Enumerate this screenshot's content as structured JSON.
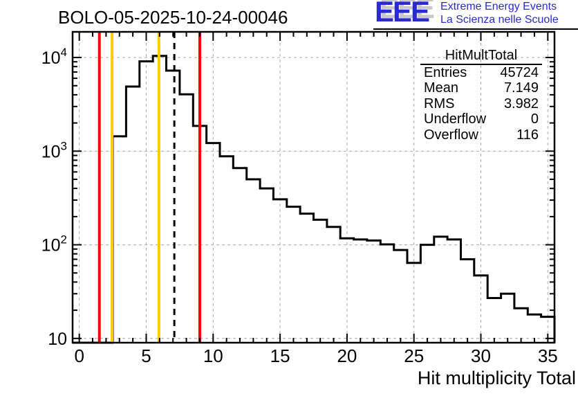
{
  "header": {
    "title": "BOLO-05-2025-10-24-00046"
  },
  "logo": {
    "acronym": "EEE",
    "line1": "Extreme Energy Events",
    "line2": "La Scienza nelle Scuole",
    "text_color": "#2a2ad2",
    "shadow_color": "#c8c8c8"
  },
  "stats": {
    "title": "HitMultTotal",
    "rows": [
      {
        "label": "Entries",
        "value": "45724"
      },
      {
        "label": "Mean",
        "value": "7.149"
      },
      {
        "label": "RMS",
        "value": "3.982"
      },
      {
        "label": "Underflow",
        "value": "0"
      },
      {
        "label": "Overflow",
        "value": "116"
      }
    ]
  },
  "chart_data": {
    "type": "bar",
    "title": "BOLO-05-2025-10-24-00046",
    "xlabel": "Hit multiplicity Total",
    "ylabel": "",
    "histogram_name": "HitMultTotal",
    "x_axis": {
      "min": -0.5,
      "max": 35.5,
      "major_ticks": [
        0,
        5,
        10,
        15,
        20,
        25,
        30,
        35
      ],
      "minor_tick_step": 1
    },
    "y_axis": {
      "scale": "log",
      "min": 9,
      "max": 18800,
      "major_ticks": [
        10,
        100,
        1000,
        10000
      ],
      "labels": [
        "10",
        "10^2",
        "10^3",
        "10^4"
      ]
    },
    "grid": {
      "shown": true,
      "style": "dashed",
      "color": "#a6a6a6"
    },
    "line_color": "#000000",
    "bin_centers": [
      0,
      1,
      2,
      3,
      4,
      5,
      6,
      7,
      8,
      9,
      10,
      11,
      12,
      13,
      14,
      15,
      16,
      17,
      18,
      19,
      20,
      21,
      22,
      23,
      24,
      25,
      26,
      27,
      28,
      29,
      30,
      31,
      32,
      33,
      34,
      35
    ],
    "values": [
      0,
      0,
      0,
      1440,
      4900,
      9100,
      10400,
      7250,
      4050,
      1860,
      1220,
      880,
      660,
      500,
      400,
      306,
      255,
      215,
      185,
      155,
      117,
      114,
      111,
      101,
      88,
      64,
      100,
      122,
      114,
      70,
      47,
      27,
      30,
      21,
      18,
      17
    ],
    "markers": {
      "red_lines": [
        1.5,
        9.0
      ],
      "red_color": "#ff0000",
      "yellow_lines": [
        2.45,
        5.95
      ],
      "yellow_color": "#ffcc00",
      "dashed_black_line": 7.1
    }
  }
}
